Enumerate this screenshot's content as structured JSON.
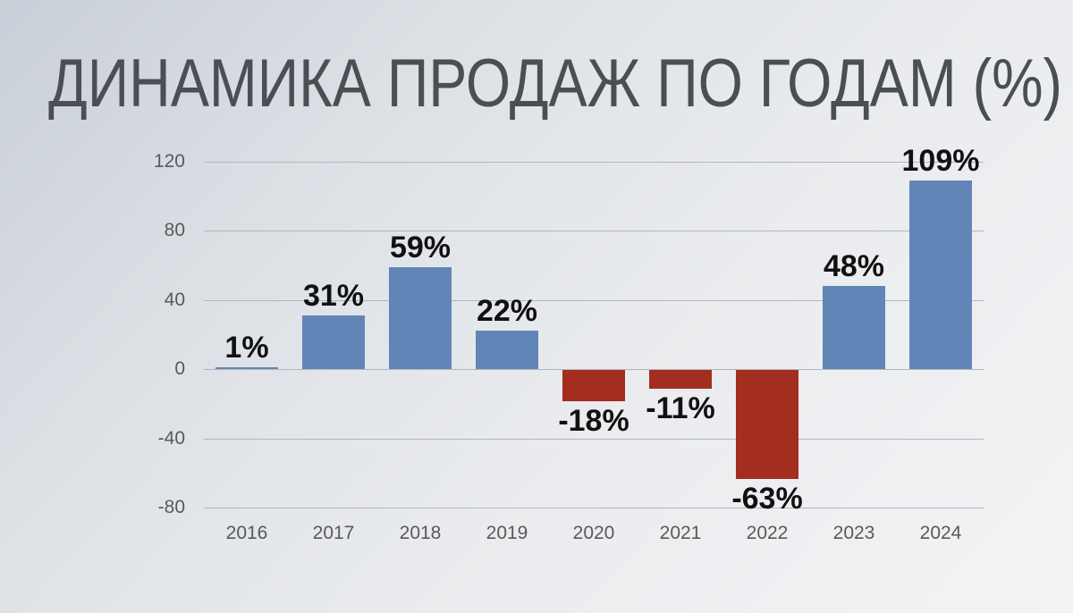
{
  "chart_data": {
    "type": "bar",
    "title": "ДИНАМИКА ПРОДАЖ ПО ГОДАМ (%)",
    "xlabel": "",
    "ylabel": "",
    "categories": [
      "2016",
      "2017",
      "2018",
      "2019",
      "2020",
      "2021",
      "2022",
      "2023",
      "2024"
    ],
    "values": [
      1,
      31,
      59,
      22,
      -18,
      -11,
      -63,
      48,
      109
    ],
    "value_labels": [
      "1%",
      "31%",
      "59%",
      "22%",
      "-18%",
      "-11%",
      "-63%",
      "48%",
      "109%"
    ],
    "yticks": [
      120,
      80,
      40,
      0,
      -40,
      -80
    ],
    "ylim": [
      -80,
      120
    ],
    "grid": true,
    "legend": false,
    "colors": {
      "positive_bar": "#6285B7",
      "negative_bar": "#A32D1E",
      "gridline": "#b3b6bc",
      "axis_text": "#595959",
      "value_text": "#111111",
      "title_text": "#4b4e53"
    }
  }
}
